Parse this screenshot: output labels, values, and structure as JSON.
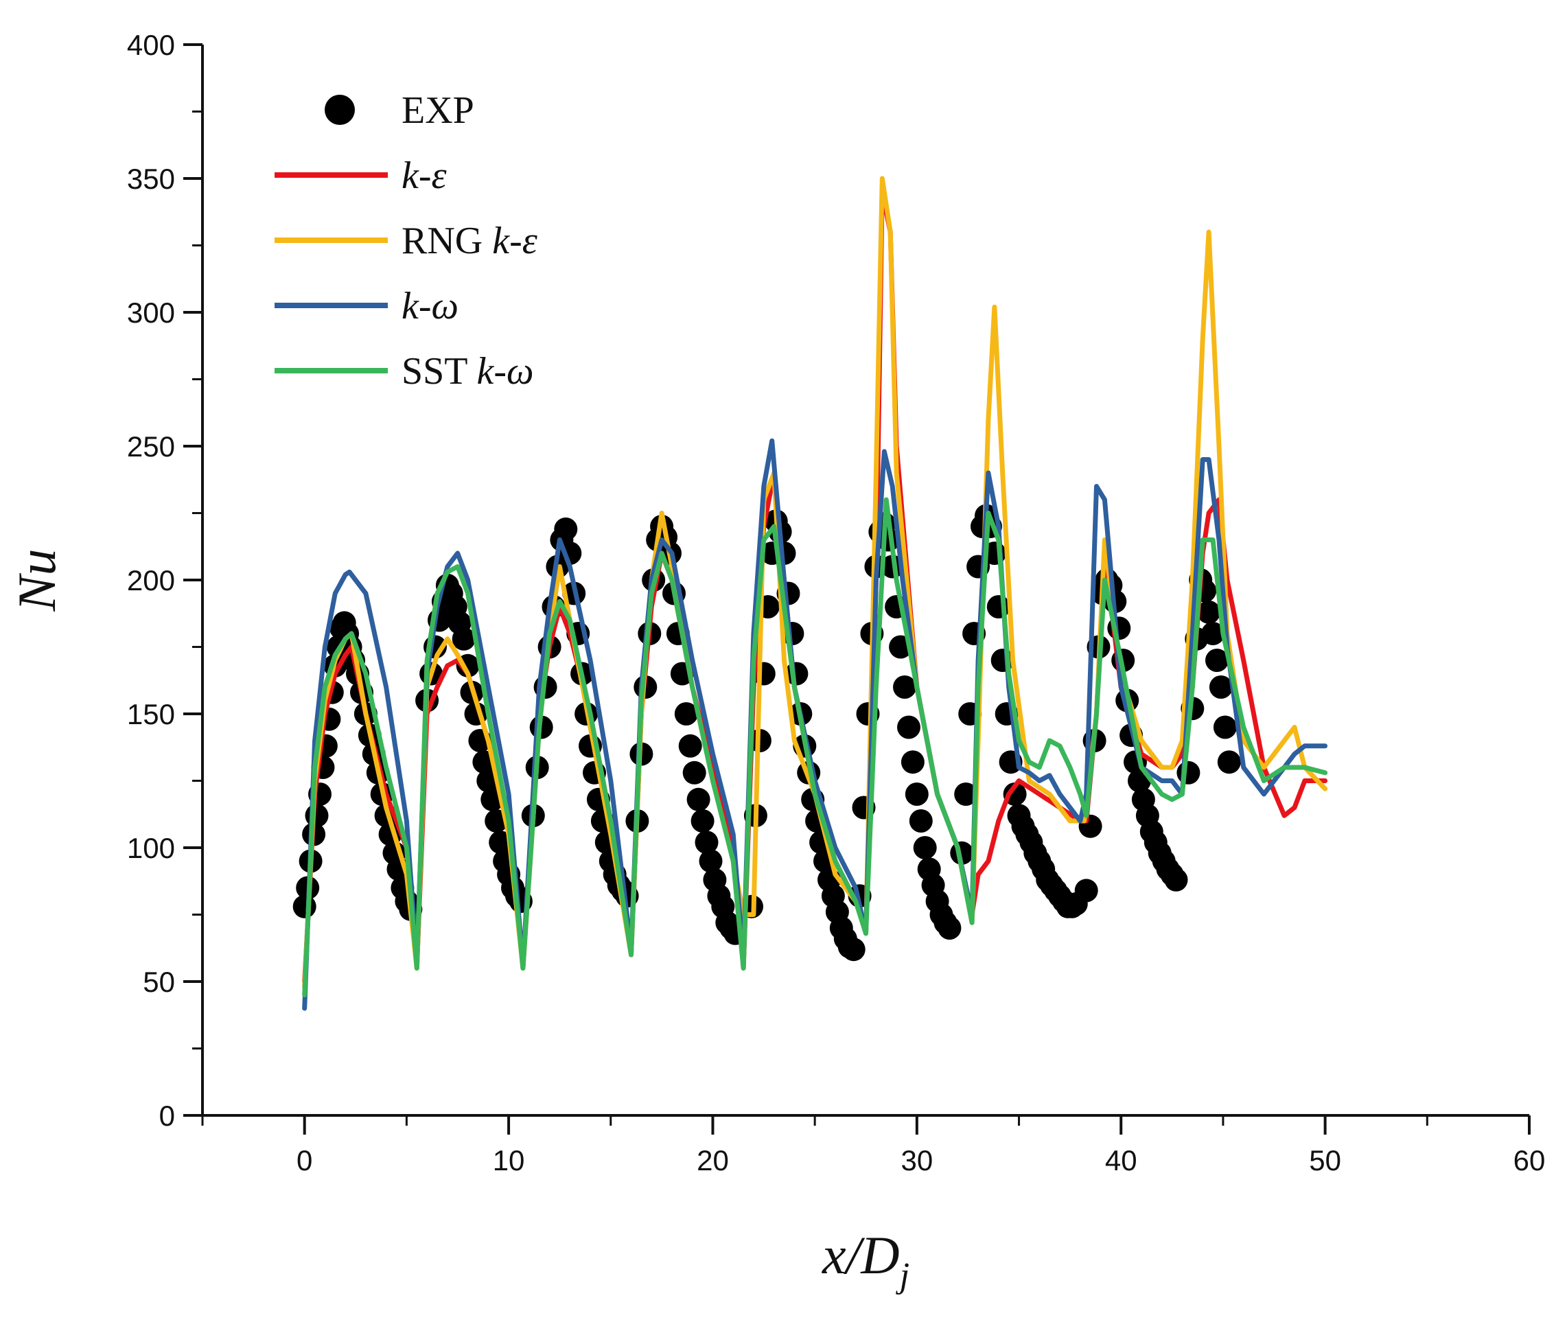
{
  "chart_data": {
    "type": "line",
    "xlabel": "x/D",
    "xlabel_sub": "j",
    "ylabel": "Nu",
    "xlim": [
      -5,
      60
    ],
    "ylim": [
      0,
      400
    ],
    "xticks": [
      0,
      10,
      20,
      30,
      40,
      50,
      60
    ],
    "yticks": [
      0,
      50,
      100,
      150,
      200,
      250,
      300,
      350,
      400
    ],
    "xtick_labels": [
      "0",
      "10",
      "20",
      "30",
      "40",
      "50",
      "60"
    ],
    "ytick_labels": [
      "0",
      "50",
      "100",
      "150",
      "200",
      "250",
      "300",
      "350",
      "400"
    ],
    "legend_position": "top-left",
    "legend": [
      {
        "key": "exp",
        "label_plain": "EXP",
        "label_italic": ""
      },
      {
        "key": "ke",
        "label_plain": "",
        "label_italic": "k-ε"
      },
      {
        "key": "rng",
        "label_plain": "RNG ",
        "label_italic": "k-ε"
      },
      {
        "key": "kw",
        "label_plain": "",
        "label_italic": "k-ω"
      },
      {
        "key": "sst",
        "label_plain": "SST ",
        "label_italic": "k-ω"
      }
    ],
    "series": [
      {
        "key": "exp",
        "name": "EXP",
        "style": "markers",
        "color": "#000000",
        "x": [
          0,
          0.15,
          0.3,
          0.45,
          0.6,
          0.75,
          0.9,
          1.05,
          1.2,
          1.35,
          1.5,
          1.65,
          1.8,
          1.95,
          2.1,
          2.25,
          2.4,
          2.6,
          2.8,
          3.0,
          3.2,
          3.4,
          3.6,
          3.8,
          4.0,
          4.2,
          4.4,
          4.6,
          4.8,
          5.0,
          5.2,
          6.0,
          6.2,
          6.4,
          6.6,
          6.8,
          7.0,
          7.2,
          7.4,
          7.6,
          7.8,
          8.0,
          8.2,
          8.4,
          8.6,
          8.8,
          9.0,
          9.2,
          9.4,
          9.6,
          9.8,
          10.0,
          10.2,
          10.4,
          10.6,
          11.2,
          11.4,
          11.6,
          11.8,
          12.0,
          12.2,
          12.4,
          12.6,
          12.8,
          13.0,
          13.2,
          13.4,
          13.6,
          13.8,
          14.0,
          14.2,
          14.4,
          14.6,
          14.8,
          15.0,
          15.2,
          15.4,
          15.6,
          15.8,
          16.3,
          16.5,
          16.7,
          16.9,
          17.1,
          17.3,
          17.5,
          17.7,
          17.9,
          18.1,
          18.3,
          18.5,
          18.7,
          18.9,
          19.1,
          19.3,
          19.5,
          19.7,
          19.9,
          20.1,
          20.3,
          20.5,
          20.7,
          20.9,
          21.1,
          21.9,
          22.1,
          22.3,
          22.5,
          22.7,
          22.9,
          23.1,
          23.3,
          23.5,
          23.7,
          23.9,
          24.1,
          24.3,
          24.5,
          24.7,
          24.9,
          25.1,
          25.3,
          25.5,
          25.7,
          25.9,
          26.1,
          26.3,
          26.5,
          26.7,
          26.9,
          27.2,
          27.4,
          27.6,
          27.8,
          28.0,
          28.2,
          28.4,
          28.6,
          28.8,
          29.0,
          29.2,
          29.4,
          29.6,
          29.8,
          30.0,
          30.2,
          30.4,
          30.6,
          30.8,
          31.0,
          31.2,
          31.4,
          31.6,
          32.2,
          32.4,
          32.6,
          32.8,
          33.0,
          33.2,
          33.4,
          33.6,
          33.8,
          34.0,
          34.2,
          34.4,
          34.6,
          34.8,
          35.0,
          35.2,
          35.4,
          35.6,
          35.8,
          36.0,
          36.2,
          36.4,
          36.6,
          36.8,
          37.0,
          37.2,
          37.4,
          37.6,
          37.8,
          38.3,
          38.5,
          38.7,
          38.9,
          39.1,
          39.3,
          39.5,
          39.7,
          39.9,
          40.1,
          40.3,
          40.5,
          40.7,
          40.9,
          41.1,
          41.3,
          41.5,
          41.7,
          41.9,
          42.1,
          42.3,
          42.5,
          42.7,
          43.3,
          43.5,
          43.7,
          43.9,
          44.1,
          44.3,
          44.5,
          44.7,
          44.9,
          45.1,
          45.3
        ],
        "y": [
          78,
          85,
          95,
          105,
          112,
          120,
          130,
          138,
          148,
          158,
          168,
          175,
          182,
          184,
          180,
          175,
          170,
          165,
          158,
          150,
          142,
          135,
          128,
          120,
          112,
          105,
          98,
          92,
          85,
          80,
          77,
          155,
          165,
          175,
          185,
          192,
          198,
          195,
          190,
          184,
          178,
          168,
          158,
          150,
          140,
          132,
          125,
          118,
          110,
          102,
          95,
          90,
          85,
          82,
          80,
          112,
          130,
          145,
          160,
          175,
          190,
          205,
          215,
          219,
          210,
          195,
          180,
          165,
          150,
          138,
          128,
          118,
          110,
          102,
          95,
          90,
          86,
          84,
          82,
          110,
          135,
          160,
          180,
          200,
          215,
          220,
          216,
          210,
          195,
          180,
          165,
          150,
          138,
          128,
          118,
          110,
          102,
          95,
          88,
          82,
          78,
          72,
          70,
          68,
          78,
          112,
          140,
          165,
          190,
          210,
          222,
          218,
          210,
          195,
          180,
          165,
          150,
          138,
          128,
          118,
          110,
          102,
          95,
          88,
          82,
          76,
          70,
          66,
          63,
          62,
          82,
          115,
          150,
          180,
          205,
          218,
          221,
          215,
          205,
          190,
          175,
          160,
          145,
          132,
          120,
          110,
          100,
          92,
          86,
          80,
          75,
          72,
          70,
          98,
          120,
          150,
          180,
          205,
          220,
          224,
          220,
          210,
          190,
          170,
          150,
          132,
          120,
          112,
          108,
          105,
          102,
          98,
          95,
          92,
          88,
          86,
          84,
          82,
          80,
          78,
          78,
          79,
          84,
          108,
          140,
          175,
          195,
          200,
          198,
          192,
          182,
          170,
          155,
          142,
          132,
          125,
          118,
          112,
          106,
          102,
          98,
          95,
          92,
          90,
          88,
          128,
          152,
          178,
          200,
          196,
          188,
          180,
          170,
          160,
          145,
          132
        ]
      },
      {
        "key": "ke",
        "name": "k-ε",
        "style": "line",
        "color": "#e8141b",
        "x": [
          0,
          0.5,
          1,
          1.5,
          2,
          2.3,
          3,
          4,
          5,
          5.5,
          6,
          6.5,
          7,
          7.5,
          8,
          9,
          10,
          10.7,
          11.5,
          12,
          12.5,
          13,
          14,
          15,
          16,
          16.5,
          17,
          17.5,
          18,
          19,
          20,
          21,
          21.5,
          22,
          22.5,
          23,
          23.5,
          24,
          25,
          26,
          27,
          27.5,
          28,
          28.3,
          28.7,
          29,
          30,
          31,
          32,
          32.7,
          33,
          33.5,
          34,
          34.5,
          35,
          36,
          37,
          38,
          38.3,
          38.8,
          39.2,
          40,
          41,
          42,
          42.5,
          43,
          43.5,
          44,
          44.3,
          44.8,
          45.2,
          46,
          47,
          48,
          48.5,
          49,
          50
        ],
        "y": [
          50,
          120,
          150,
          165,
          172,
          175,
          150,
          120,
          100,
          55,
          150,
          160,
          168,
          170,
          165,
          140,
          110,
          55,
          150,
          175,
          190,
          180,
          150,
          110,
          60,
          150,
          190,
          210,
          200,
          160,
          130,
          100,
          55,
          160,
          220,
          240,
          200,
          160,
          120,
          95,
          80,
          70,
          200,
          345,
          330,
          250,
          160,
          120,
          100,
          75,
          90,
          95,
          110,
          120,
          125,
          120,
          115,
          110,
          110,
          150,
          210,
          160,
          135,
          130,
          130,
          135,
          160,
          210,
          225,
          230,
          200,
          170,
          130,
          112,
          115,
          125,
          125
        ]
      },
      {
        "key": "rng",
        "name": "RNG k-ε",
        "style": "line",
        "color": "#f6b817",
        "x": [
          0,
          0.5,
          1,
          1.5,
          2,
          2.3,
          3,
          4,
          5,
          5.5,
          6,
          6.5,
          7,
          7.5,
          8,
          9,
          10,
          10.7,
          11.5,
          12,
          12.5,
          13,
          14,
          15,
          16,
          16.5,
          17,
          17.5,
          18,
          19,
          20,
          21,
          21.5,
          22,
          22.5,
          23,
          23.5,
          24,
          25,
          26,
          27,
          27.5,
          28,
          28.3,
          28.7,
          29,
          30,
          31,
          32,
          32.7,
          33,
          33.5,
          33.8,
          34.2,
          34.7,
          35.5,
          36.5,
          37.5,
          38.2,
          38.8,
          39.2,
          40,
          41,
          42,
          42.5,
          43,
          43.5,
          44,
          44.3,
          44.8,
          45.2,
          46,
          47,
          48,
          48.5,
          49,
          50
        ],
        "y": [
          48,
          125,
          155,
          170,
          178,
          180,
          150,
          115,
          90,
          55,
          160,
          172,
          178,
          172,
          165,
          140,
          105,
          55,
          145,
          180,
          205,
          185,
          145,
          105,
          60,
          150,
          200,
          225,
          205,
          160,
          125,
          95,
          75,
          75,
          230,
          240,
          170,
          140,
          120,
          90,
          80,
          68,
          240,
          350,
          330,
          240,
          160,
          120,
          100,
          72,
          140,
          260,
          302,
          240,
          170,
          125,
          120,
          110,
          110,
          150,
          215,
          165,
          140,
          130,
          130,
          140,
          200,
          290,
          330,
          250,
          180,
          140,
          130,
          140,
          145,
          130,
          122
        ]
      },
      {
        "key": "kw",
        "name": "k-ω",
        "style": "line",
        "color": "#2e5f9e",
        "x": [
          0,
          0.5,
          1,
          1.5,
          2,
          2.2,
          3,
          4,
          5,
          5.5,
          6,
          6.5,
          7,
          7.5,
          8,
          9,
          10,
          10.7,
          11.5,
          12,
          12.5,
          13,
          14,
          15,
          16,
          16.5,
          17,
          17.5,
          18,
          19,
          20,
          21,
          21.5,
          22,
          22.5,
          22.9,
          23.5,
          24,
          25,
          26,
          27,
          27.5,
          28,
          28.4,
          28.8,
          29.3,
          30,
          31,
          32,
          32.7,
          33,
          33.5,
          34,
          34.5,
          35,
          35.5,
          36,
          36.5,
          37,
          37.5,
          38,
          38.3,
          38.8,
          39.2,
          40,
          41,
          42,
          42.5,
          43,
          43.5,
          44,
          44.3,
          44.8,
          45.2,
          46,
          47,
          48,
          48.5,
          49,
          50
        ],
        "y": [
          40,
          140,
          175,
          195,
          202,
          203,
          195,
          160,
          110,
          58,
          165,
          190,
          205,
          210,
          200,
          160,
          120,
          56,
          160,
          190,
          215,
          205,
          170,
          125,
          62,
          160,
          200,
          215,
          210,
          170,
          135,
          105,
          58,
          180,
          235,
          252,
          200,
          160,
          125,
          100,
          85,
          68,
          200,
          248,
          235,
          200,
          160,
          120,
          100,
          75,
          170,
          240,
          220,
          160,
          130,
          128,
          125,
          127,
          120,
          115,
          110,
          120,
          235,
          230,
          160,
          130,
          125,
          125,
          120,
          180,
          245,
          245,
          215,
          175,
          130,
          120,
          130,
          135,
          138,
          138
        ]
      },
      {
        "key": "sst",
        "name": "SST k-ω",
        "style": "line",
        "color": "#3ab65a",
        "x": [
          0,
          0.5,
          1,
          1.5,
          2,
          2.3,
          3,
          4,
          5,
          5.5,
          6,
          6.5,
          7,
          7.5,
          8,
          9,
          10,
          10.7,
          11.5,
          12,
          12.5,
          13,
          14,
          15,
          16,
          16.5,
          17,
          17.5,
          18,
          19,
          20,
          21,
          21.5,
          22,
          22.5,
          23,
          23.5,
          24,
          25,
          26,
          27,
          27.5,
          28,
          28.5,
          29,
          30,
          31,
          32,
          32.7,
          33,
          33.5,
          34,
          34.5,
          35,
          35.5,
          36,
          36.5,
          37,
          37.5,
          38,
          38.3,
          38.8,
          39.2,
          40,
          41,
          42,
          42.5,
          43,
          43.5,
          44,
          44.5,
          45,
          46,
          47,
          48,
          49,
          50
        ],
        "y": [
          45,
          130,
          160,
          172,
          178,
          180,
          165,
          130,
          100,
          55,
          170,
          195,
          203,
          205,
          195,
          150,
          110,
          55,
          145,
          180,
          192,
          185,
          150,
          110,
          60,
          155,
          195,
          210,
          200,
          160,
          125,
          95,
          55,
          170,
          215,
          220,
          190,
          160,
          120,
          95,
          80,
          68,
          160,
          230,
          200,
          160,
          120,
          100,
          72,
          160,
          225,
          215,
          165,
          140,
          132,
          130,
          140,
          138,
          130,
          120,
          112,
          150,
          200,
          170,
          130,
          120,
          118,
          120,
          160,
          215,
          215,
          180,
          145,
          125,
          130,
          130,
          128
        ]
      }
    ]
  }
}
